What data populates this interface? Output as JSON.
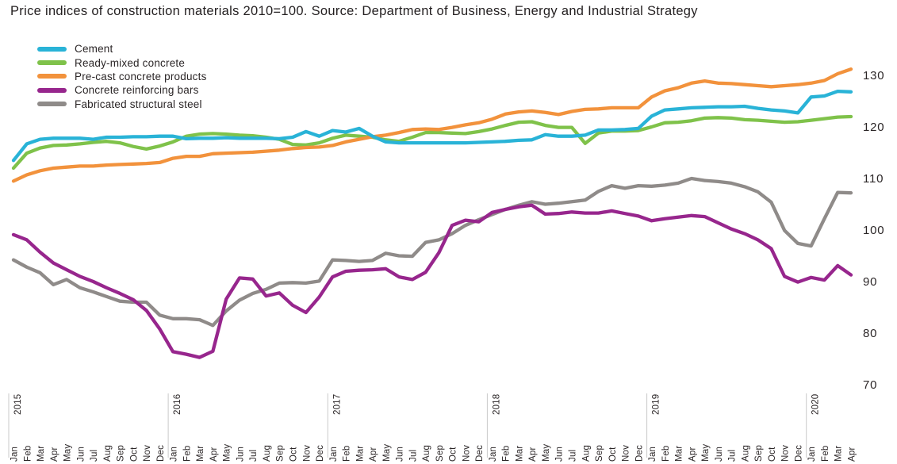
{
  "title": "Price indices of construction materials 2010=100. Source: Department of Business, Energy and Industrial Strategy",
  "legend": {
    "items": [
      {
        "label": "Cement",
        "color": "#29b3d7"
      },
      {
        "label": "Ready-mixed concrete",
        "color": "#7fc24a"
      },
      {
        "label": "Pre-cast concrete products",
        "color": "#f2923c"
      },
      {
        "label": "Concrete reinforcing bars",
        "color": "#97268d"
      },
      {
        "label": "Fabricated structural steel",
        "color": "#8f8b89"
      }
    ]
  },
  "y_axis": {
    "ticks": [
      130,
      120,
      110,
      100,
      90,
      80,
      70
    ]
  },
  "chart_data": {
    "type": "line",
    "title": "Price indices of construction materials 2010=100",
    "source": "Department of Business, Energy and Industrial Strategy",
    "ylim": [
      70,
      132
    ],
    "grid": "off",
    "legend_position": "top-left",
    "months": [
      "Jan",
      "Feb",
      "Mar",
      "Apr",
      "May",
      "Jun",
      "Jul",
      "Aug",
      "Sep",
      "Oct",
      "Nov",
      "Dec",
      "Jan",
      "Feb",
      "Mar",
      "Apr",
      "May",
      "Jun",
      "Jul",
      "Aug",
      "Sep",
      "Oct",
      "Nov",
      "Dec",
      "Jan",
      "Feb",
      "Mar",
      "Apr",
      "May",
      "Jun",
      "Jul",
      "Aug",
      "Sep",
      "Oct",
      "Nov",
      "Dec",
      "Jan",
      "Feb",
      "Mar",
      "Apr",
      "May",
      "Jun",
      "Jul",
      "Aug",
      "Sep",
      "Oct",
      "Nov",
      "Dec",
      "Jan",
      "Feb",
      "Mar",
      "Apr",
      "May",
      "Jun",
      "Jul",
      "Aug",
      "Sep",
      "Oct",
      "Nov",
      "Dec",
      "Jan",
      "Feb",
      "Mar",
      "Apr"
    ],
    "year_marks": [
      {
        "index": 0,
        "label": "2015"
      },
      {
        "index": 12,
        "label": "2016"
      },
      {
        "index": 24,
        "label": "2017"
      },
      {
        "index": 36,
        "label": "2018"
      },
      {
        "index": 48,
        "label": "2019"
      },
      {
        "index": 60,
        "label": "2020"
      }
    ],
    "series": [
      {
        "name": "Cement",
        "color": "#29b3d7",
        "values": [
          113.5,
          116.7,
          117.6,
          117.8,
          117.8,
          117.8,
          117.6,
          118.0,
          118.0,
          118.1,
          118.1,
          118.2,
          118.2,
          117.7,
          117.8,
          117.8,
          117.9,
          117.8,
          117.8,
          117.8,
          117.7,
          118.0,
          119.1,
          118.2,
          119.3,
          119.0,
          119.7,
          118.2,
          117.1,
          116.9,
          116.9,
          116.9,
          116.9,
          116.9,
          116.9,
          117.0,
          117.1,
          117.2,
          117.4,
          117.5,
          118.5,
          118.2,
          118.2,
          118.4,
          119.4,
          119.4,
          119.5,
          119.7,
          122.1,
          123.3,
          123.5,
          123.7,
          123.8,
          123.9,
          123.9,
          124.0,
          123.6,
          123.3,
          123.1,
          122.7,
          125.8,
          126.0,
          126.9,
          126.8
        ]
      },
      {
        "name": "Ready-mixed concrete",
        "color": "#7fc24a",
        "values": [
          112.0,
          114.9,
          115.9,
          116.4,
          116.5,
          116.7,
          117.0,
          117.2,
          116.9,
          116.2,
          115.7,
          116.3,
          117.1,
          118.2,
          118.6,
          118.7,
          118.6,
          118.4,
          118.3,
          118.0,
          117.6,
          116.6,
          116.5,
          116.9,
          117.8,
          118.4,
          118.2,
          118.0,
          117.5,
          117.2,
          118.0,
          118.9,
          118.9,
          118.8,
          118.7,
          119.1,
          119.6,
          120.3,
          120.9,
          121.0,
          120.3,
          119.9,
          119.9,
          116.8,
          118.8,
          119.2,
          119.2,
          119.3,
          120.0,
          120.8,
          120.9,
          121.2,
          121.7,
          121.8,
          121.7,
          121.4,
          121.3,
          121.1,
          120.9,
          121.0,
          121.3,
          121.6,
          121.9,
          122.0
        ]
      },
      {
        "name": "Pre-cast concrete products",
        "color": "#f2923c",
        "values": [
          109.5,
          110.7,
          111.5,
          112.0,
          112.2,
          112.4,
          112.4,
          112.6,
          112.7,
          112.8,
          112.9,
          113.1,
          113.9,
          114.3,
          114.3,
          114.8,
          114.9,
          115.0,
          115.1,
          115.3,
          115.5,
          115.8,
          116.0,
          116.1,
          116.4,
          117.1,
          117.6,
          118.1,
          118.4,
          118.9,
          119.5,
          119.6,
          119.5,
          119.9,
          120.4,
          120.8,
          121.5,
          122.5,
          122.9,
          123.1,
          122.8,
          122.4,
          123.0,
          123.4,
          123.5,
          123.7,
          123.7,
          123.7,
          125.8,
          127.0,
          127.6,
          128.5,
          128.9,
          128.5,
          128.4,
          128.2,
          128.0,
          127.8,
          128.0,
          128.2,
          128.5,
          129.0,
          130.3,
          131.2
        ]
      },
      {
        "name": "Concrete reinforcing bars",
        "color": "#97268d",
        "values": [
          99.1,
          98.1,
          95.7,
          93.6,
          92.3,
          91.0,
          90.0,
          88.8,
          87.7,
          86.5,
          84.4,
          80.8,
          76.4,
          75.9,
          75.3,
          76.5,
          86.6,
          90.7,
          90.5,
          87.2,
          87.8,
          85.4,
          84.0,
          87.0,
          90.9,
          92.0,
          92.2,
          92.3,
          92.5,
          90.9,
          90.4,
          91.8,
          95.6,
          100.9,
          101.9,
          101.6,
          103.4,
          104.0,
          104.5,
          104.8,
          103.1,
          103.2,
          103.5,
          103.3,
          103.3,
          103.7,
          103.2,
          102.7,
          101.8,
          102.2,
          102.5,
          102.8,
          102.6,
          101.4,
          100.2,
          99.3,
          98.1,
          96.4,
          91.0,
          89.9,
          90.8,
          90.3,
          93.1,
          91.3
        ]
      },
      {
        "name": "Fabricated structural steel",
        "color": "#8f8b89",
        "values": [
          94.2,
          92.8,
          91.7,
          89.4,
          90.4,
          88.8,
          88.0,
          87.1,
          86.2,
          86.0,
          86.0,
          83.5,
          82.8,
          82.8,
          82.6,
          81.5,
          84.3,
          86.4,
          87.7,
          88.5,
          89.7,
          89.8,
          89.7,
          90.1,
          94.2,
          94.1,
          93.9,
          94.1,
          95.5,
          95.0,
          94.9,
          97.6,
          98.1,
          99.3,
          100.9,
          102.0,
          103.0,
          104.0,
          104.8,
          105.5,
          105.0,
          105.2,
          105.5,
          105.8,
          107.5,
          108.6,
          108.1,
          108.6,
          108.5,
          108.7,
          109.1,
          110.0,
          109.6,
          109.4,
          109.1,
          108.4,
          107.4,
          105.4,
          99.9,
          97.4,
          96.9,
          102.2,
          107.3,
          107.2
        ]
      }
    ]
  }
}
